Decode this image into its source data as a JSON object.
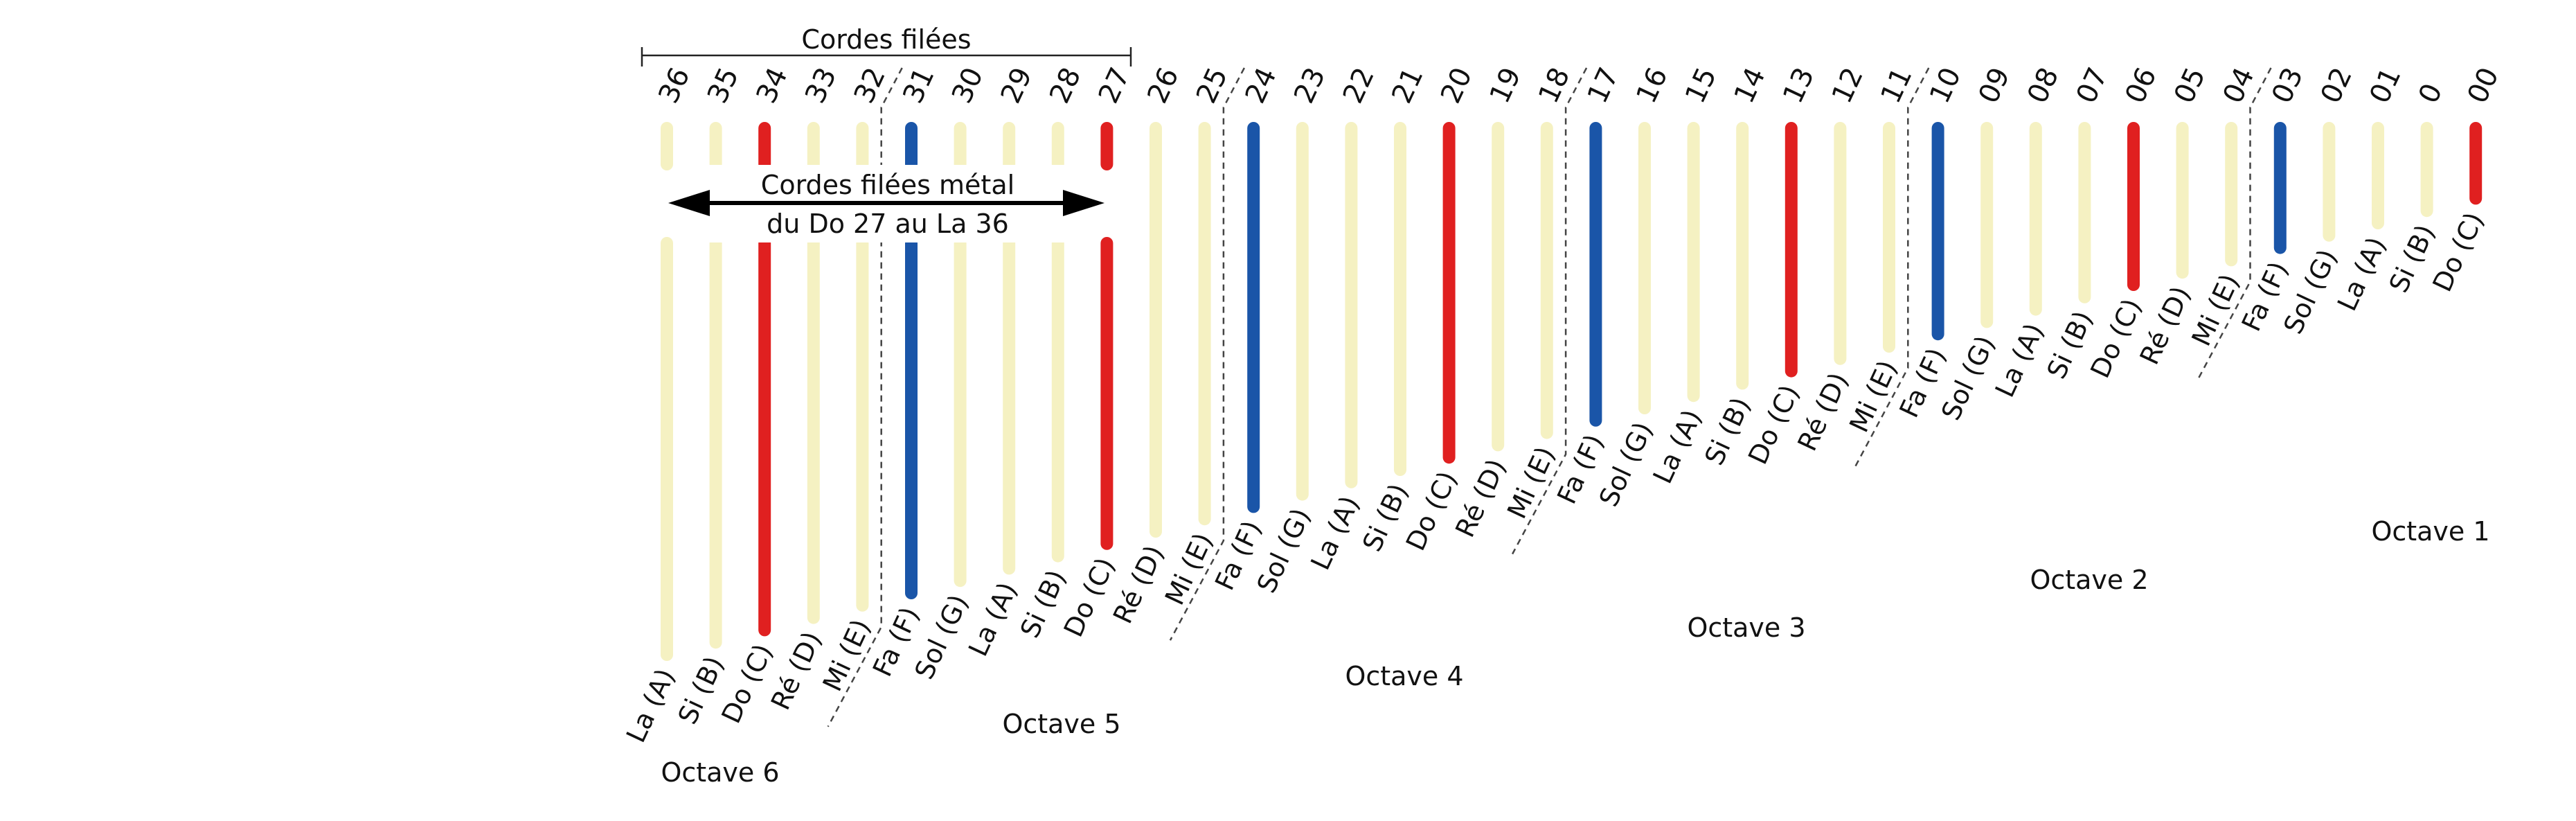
{
  "header": {
    "wound_strings_label": "Cordes filées"
  },
  "annotation": {
    "line1": "Cordes filées métal",
    "line2": "du Do 27 au La 36"
  },
  "colors": {
    "natural": "#f5f1c2",
    "c_note": "#e02020",
    "f_note": "#1a55a8",
    "dash": "#444444",
    "arrow": "#000000"
  },
  "strings": [
    {
      "num": "36",
      "note": "La (A)",
      "kind": "natural"
    },
    {
      "num": "35",
      "note": "Si (B)",
      "kind": "natural"
    },
    {
      "num": "34",
      "note": "Do (C)",
      "kind": "c_note"
    },
    {
      "num": "33",
      "note": "Ré (D)",
      "kind": "natural"
    },
    {
      "num": "32",
      "note": "Mi (E)",
      "kind": "natural"
    },
    {
      "num": "31",
      "note": "Fa (F)",
      "kind": "f_note"
    },
    {
      "num": "30",
      "note": "Sol (G)",
      "kind": "natural"
    },
    {
      "num": "29",
      "note": "La (A)",
      "kind": "natural"
    },
    {
      "num": "28",
      "note": "Si (B)",
      "kind": "natural"
    },
    {
      "num": "27",
      "note": "Do (C)",
      "kind": "c_note"
    },
    {
      "num": "26",
      "note": "Ré (D)",
      "kind": "natural"
    },
    {
      "num": "25",
      "note": "Mi (E)",
      "kind": "natural"
    },
    {
      "num": "24",
      "note": "Fa (F)",
      "kind": "f_note"
    },
    {
      "num": "23",
      "note": "Sol (G)",
      "kind": "natural"
    },
    {
      "num": "22",
      "note": "La (A)",
      "kind": "natural"
    },
    {
      "num": "21",
      "note": "Si (B)",
      "kind": "natural"
    },
    {
      "num": "20",
      "note": "Do (C)",
      "kind": "c_note"
    },
    {
      "num": "19",
      "note": "Ré (D)",
      "kind": "natural"
    },
    {
      "num": "18",
      "note": "Mi (E)",
      "kind": "natural"
    },
    {
      "num": "17",
      "note": "Fa (F)",
      "kind": "f_note"
    },
    {
      "num": "16",
      "note": "Sol (G)",
      "kind": "natural"
    },
    {
      "num": "15",
      "note": "La (A)",
      "kind": "natural"
    },
    {
      "num": "14",
      "note": "Si (B)",
      "kind": "natural"
    },
    {
      "num": "13",
      "note": "Do (C)",
      "kind": "c_note"
    },
    {
      "num": "12",
      "note": "Ré (D)",
      "kind": "natural"
    },
    {
      "num": "11",
      "note": "Mi (E)",
      "kind": "natural"
    },
    {
      "num": "10",
      "note": "Fa (F)",
      "kind": "f_note"
    },
    {
      "num": "09",
      "note": "Sol (G)",
      "kind": "natural"
    },
    {
      "num": "08",
      "note": "La (A)",
      "kind": "natural"
    },
    {
      "num": "07",
      "note": "Si (B)",
      "kind": "natural"
    },
    {
      "num": "06",
      "note": "Do (C)",
      "kind": "c_note"
    },
    {
      "num": "05",
      "note": "Ré (D)",
      "kind": "natural"
    },
    {
      "num": "04",
      "note": "Mi (E)",
      "kind": "natural"
    },
    {
      "num": "03",
      "note": "Fa (F)",
      "kind": "f_note"
    },
    {
      "num": "02",
      "note": "Sol (G)",
      "kind": "natural"
    },
    {
      "num": "01",
      "note": "La (A)",
      "kind": "natural"
    },
    {
      "num": "0",
      "note": "Si (B)",
      "kind": "natural"
    },
    {
      "num": "00",
      "note": "Do (C)",
      "kind": "c_note"
    }
  ],
  "octaves": [
    {
      "label": "Octave 6"
    },
    {
      "label": "Octave 5"
    },
    {
      "label": "Octave 4"
    },
    {
      "label": "Octave 3"
    },
    {
      "label": "Octave 2"
    },
    {
      "label": "Octave 1"
    }
  ]
}
